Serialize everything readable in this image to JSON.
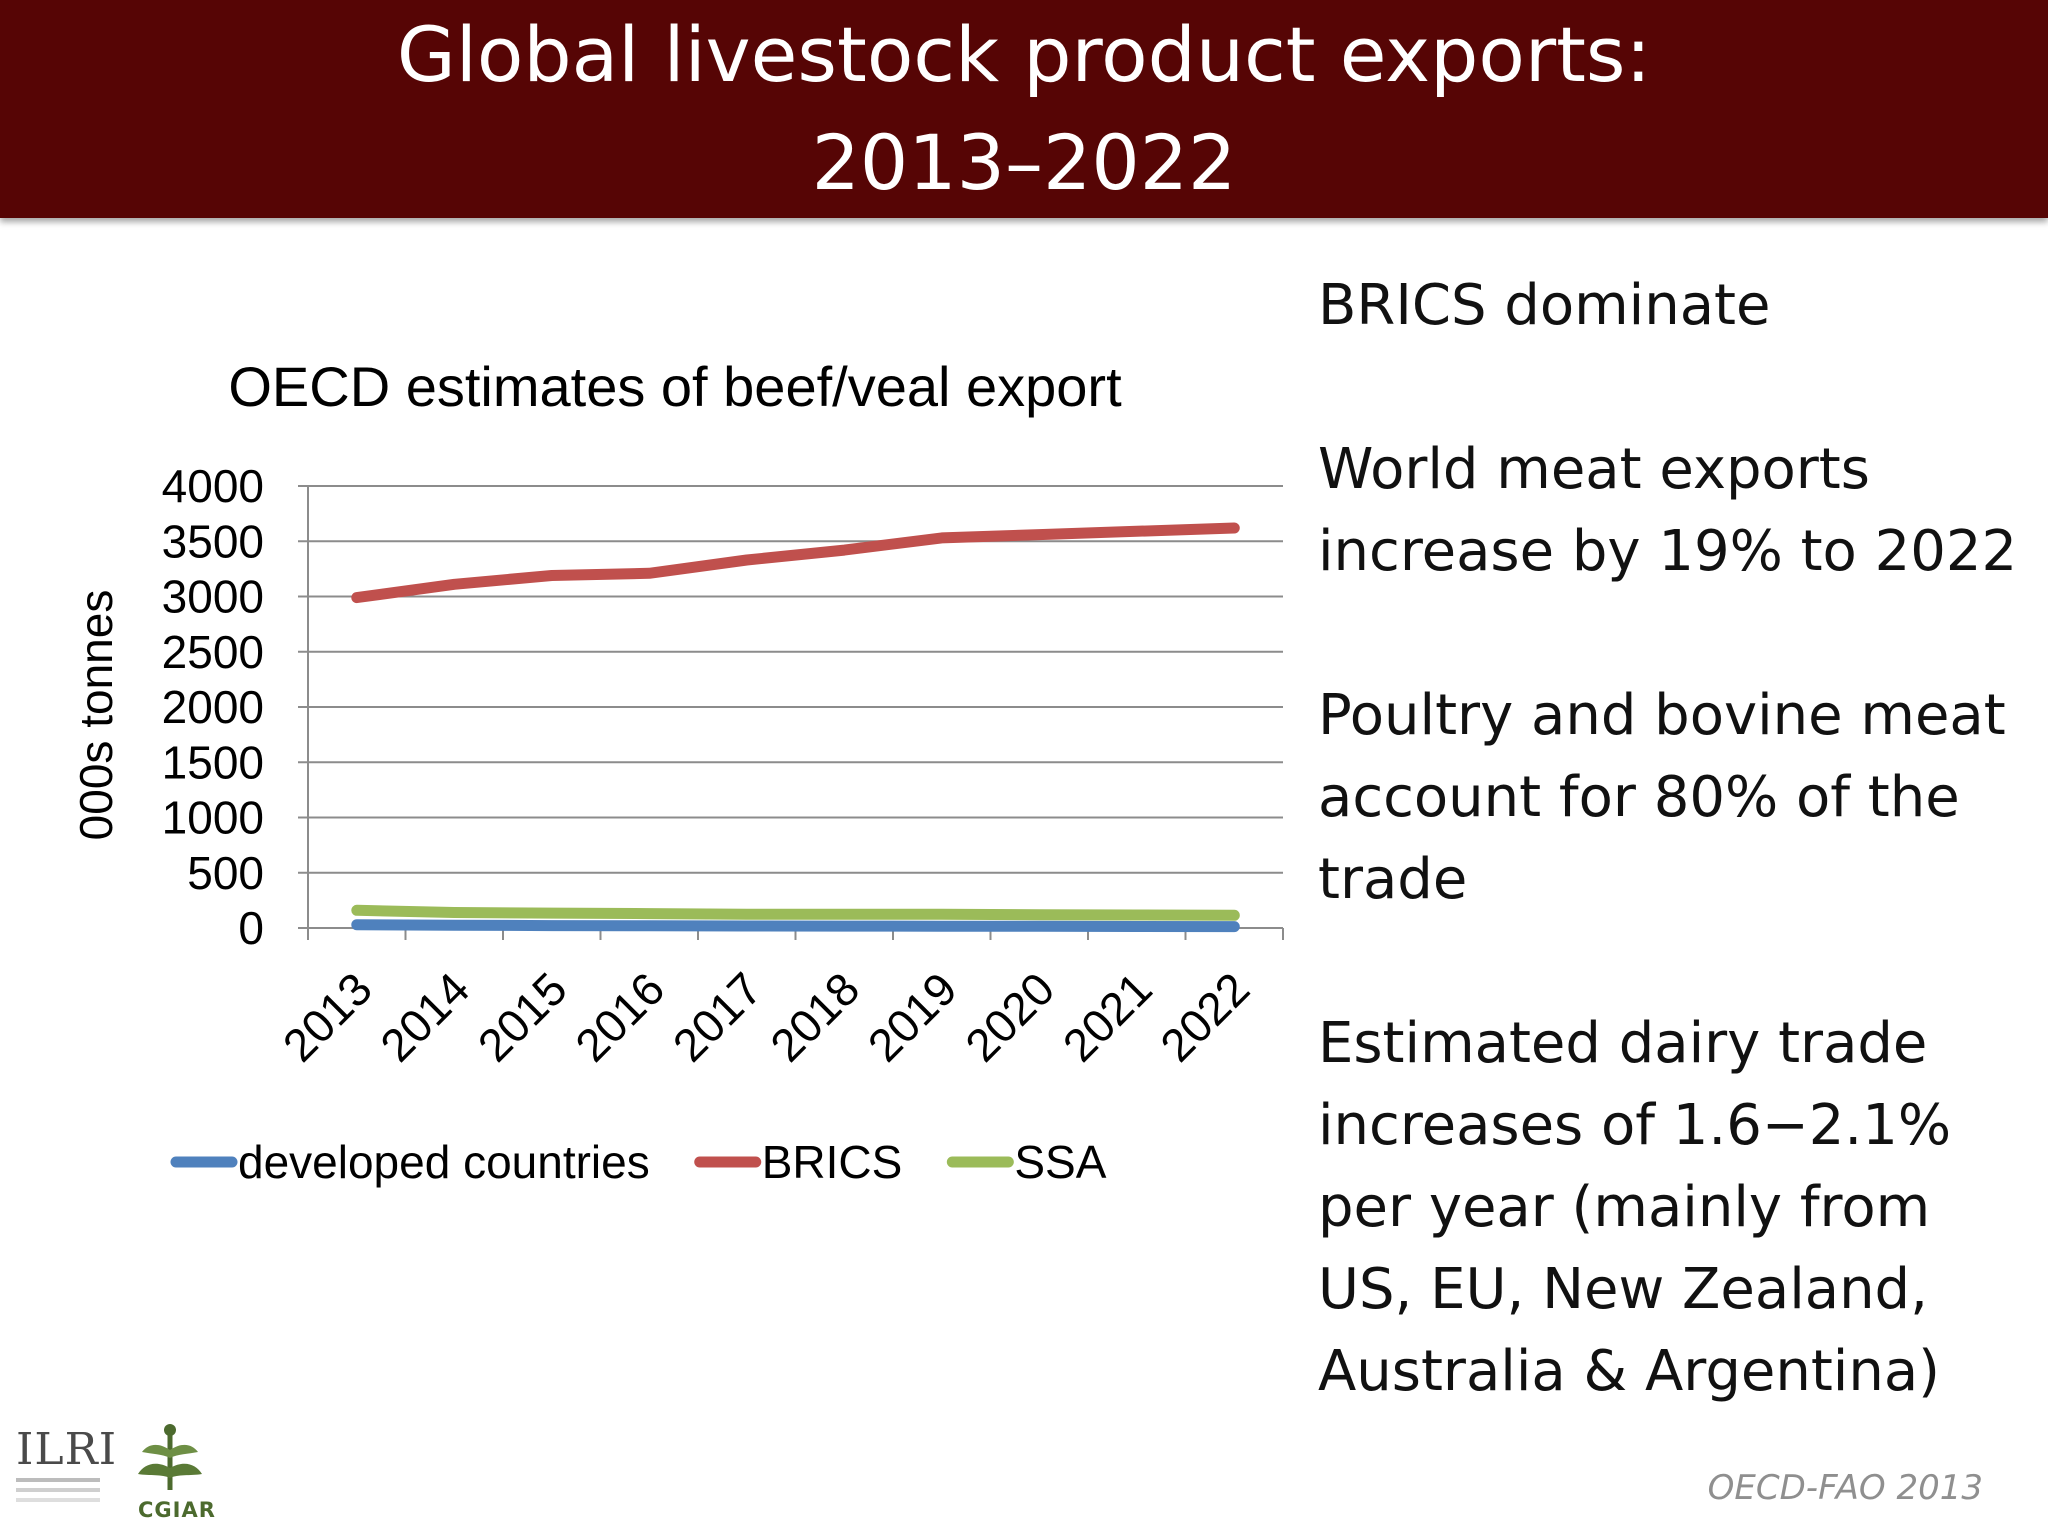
{
  "slide": {
    "title_line1": "Global livestock product exports:",
    "title_line2": "2013–2022",
    "title_bg_color": "#560505",
    "bullets": [
      "BRICS dominate",
      "World meat exports increase by 19% to 2022",
      "Poultry and bovine meat account for 80% of the trade",
      "Estimated dairy trade increases of 1.6−2.1% per year (mainly from US, EU, New Zealand, Australia & Argentina)"
    ],
    "source": "OECD-FAO 2013",
    "logos": {
      "ilri": "ILRI",
      "cgiar": "CGIAR"
    }
  },
  "chart_data": {
    "type": "line",
    "title": "OECD estimates of beef/veal export",
    "ylabel": "000s tonnes",
    "xlabel": "",
    "categories": [
      "2013",
      "2014",
      "2015",
      "2016",
      "2017",
      "2018",
      "2019",
      "2020",
      "2021",
      "2022"
    ],
    "ylim": [
      0,
      4000
    ],
    "yticks": [
      0,
      500,
      1000,
      1500,
      2000,
      2500,
      3000,
      3500,
      4000
    ],
    "grid": true,
    "legend_position": "bottom",
    "series": [
      {
        "name": "developed countries",
        "color": "#4f81bd",
        "values": [
          30,
          25,
          22,
          20,
          18,
          17,
          16,
          15,
          14,
          13
        ]
      },
      {
        "name": "BRICS",
        "color": "#c0504d",
        "values": [
          2990,
          3110,
          3190,
          3210,
          3330,
          3420,
          3530,
          3560,
          3590,
          3620
        ]
      },
      {
        "name": "SSA",
        "color": "#9bbb59",
        "values": [
          160,
          140,
          135,
          130,
          125,
          125,
          125,
          120,
          118,
          115
        ]
      }
    ]
  }
}
